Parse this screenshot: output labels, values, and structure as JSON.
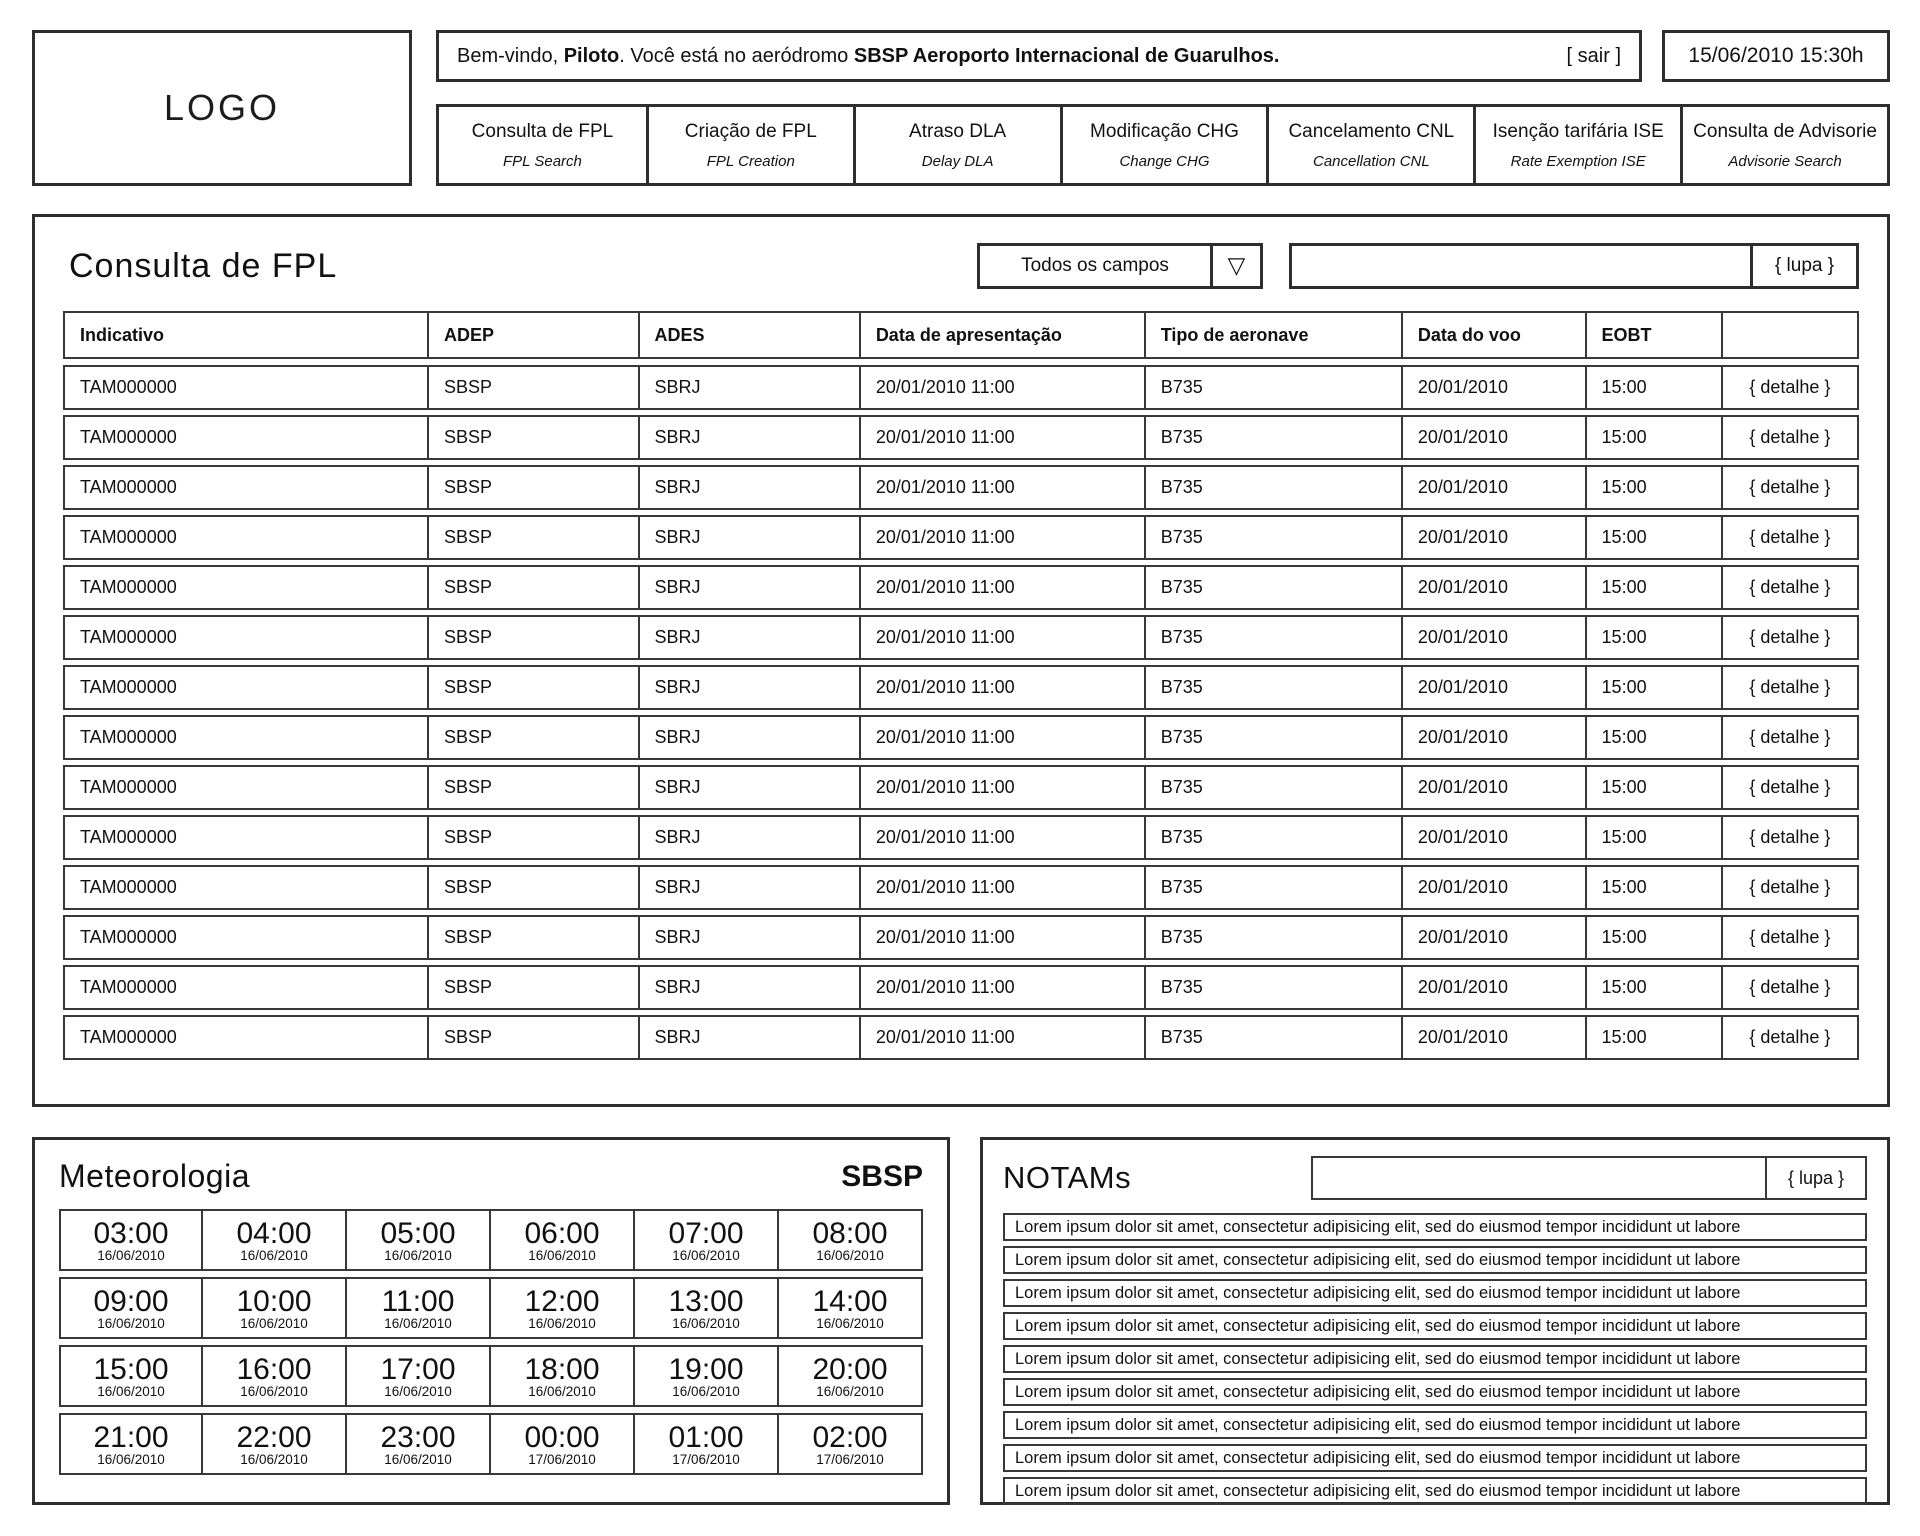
{
  "header": {
    "logo": "LOGO",
    "welcome": {
      "prefix": "Bem-vindo, ",
      "user": "Piloto",
      "middle": ". Você está no aeródromo ",
      "aerodrome": "SBSP Aeroporto Internacional de Guarulhos."
    },
    "logout_label": "[ sair ]",
    "datetime": "15/06/2010 15:30h",
    "nav": [
      {
        "label": "Consulta de FPL",
        "sublabel": "FPL Search"
      },
      {
        "label": "Criação de FPL",
        "sublabel": "FPL Creation"
      },
      {
        "label": "Atraso DLA",
        "sublabel": "Delay DLA"
      },
      {
        "label": "Modificação CHG",
        "sublabel": "Change CHG"
      },
      {
        "label": "Cancelamento CNL",
        "sublabel": "Cancellation CNL"
      },
      {
        "label": "Isenção tarifária ISE",
        "sublabel": "Rate Exemption ISE"
      },
      {
        "label": "Consulta de Advisorie",
        "sublabel": "Advisorie Search"
      }
    ]
  },
  "fpl_search": {
    "title": "Consulta de FPL",
    "filter_dropdown": {
      "value": "Todos os campos",
      "arrow_icon": "▽"
    },
    "search_input": {
      "value": "",
      "placeholder": ""
    },
    "search_button": "{ lupa }",
    "table": {
      "columns": [
        "Indicativo",
        "ADEP",
        "ADES",
        "Data de apresentação",
        "Tipo de aeronave",
        "Data do voo",
        "EOBT",
        ""
      ],
      "detail_label": "{ detalhe }",
      "rows": [
        {
          "indicativo": "TAM000000",
          "adep": "SBSP",
          "ades": "SBRJ",
          "data_apresentacao": "20/01/2010 11:00",
          "tipo_aeronave": "B735",
          "data_voo": "20/01/2010",
          "eobt": "15:00"
        },
        {
          "indicativo": "TAM000000",
          "adep": "SBSP",
          "ades": "SBRJ",
          "data_apresentacao": "20/01/2010 11:00",
          "tipo_aeronave": "B735",
          "data_voo": "20/01/2010",
          "eobt": "15:00"
        },
        {
          "indicativo": "TAM000000",
          "adep": "SBSP",
          "ades": "SBRJ",
          "data_apresentacao": "20/01/2010 11:00",
          "tipo_aeronave": "B735",
          "data_voo": "20/01/2010",
          "eobt": "15:00"
        },
        {
          "indicativo": "TAM000000",
          "adep": "SBSP",
          "ades": "SBRJ",
          "data_apresentacao": "20/01/2010 11:00",
          "tipo_aeronave": "B735",
          "data_voo": "20/01/2010",
          "eobt": "15:00"
        },
        {
          "indicativo": "TAM000000",
          "adep": "SBSP",
          "ades": "SBRJ",
          "data_apresentacao": "20/01/2010 11:00",
          "tipo_aeronave": "B735",
          "data_voo": "20/01/2010",
          "eobt": "15:00"
        },
        {
          "indicativo": "TAM000000",
          "adep": "SBSP",
          "ades": "SBRJ",
          "data_apresentacao": "20/01/2010 11:00",
          "tipo_aeronave": "B735",
          "data_voo": "20/01/2010",
          "eobt": "15:00"
        },
        {
          "indicativo": "TAM000000",
          "adep": "SBSP",
          "ades": "SBRJ",
          "data_apresentacao": "20/01/2010 11:00",
          "tipo_aeronave": "B735",
          "data_voo": "20/01/2010",
          "eobt": "15:00"
        },
        {
          "indicativo": "TAM000000",
          "adep": "SBSP",
          "ades": "SBRJ",
          "data_apresentacao": "20/01/2010 11:00",
          "tipo_aeronave": "B735",
          "data_voo": "20/01/2010",
          "eobt": "15:00"
        },
        {
          "indicativo": "TAM000000",
          "adep": "SBSP",
          "ades": "SBRJ",
          "data_apresentacao": "20/01/2010 11:00",
          "tipo_aeronave": "B735",
          "data_voo": "20/01/2010",
          "eobt": "15:00"
        },
        {
          "indicativo": "TAM000000",
          "adep": "SBSP",
          "ades": "SBRJ",
          "data_apresentacao": "20/01/2010 11:00",
          "tipo_aeronave": "B735",
          "data_voo": "20/01/2010",
          "eobt": "15:00"
        },
        {
          "indicativo": "TAM000000",
          "adep": "SBSP",
          "ades": "SBRJ",
          "data_apresentacao": "20/01/2010 11:00",
          "tipo_aeronave": "B735",
          "data_voo": "20/01/2010",
          "eobt": "15:00"
        },
        {
          "indicativo": "TAM000000",
          "adep": "SBSP",
          "ades": "SBRJ",
          "data_apresentacao": "20/01/2010 11:00",
          "tipo_aeronave": "B735",
          "data_voo": "20/01/2010",
          "eobt": "15:00"
        },
        {
          "indicativo": "TAM000000",
          "adep": "SBSP",
          "ades": "SBRJ",
          "data_apresentacao": "20/01/2010 11:00",
          "tipo_aeronave": "B735",
          "data_voo": "20/01/2010",
          "eobt": "15:00"
        },
        {
          "indicativo": "TAM000000",
          "adep": "SBSP",
          "ades": "SBRJ",
          "data_apresentacao": "20/01/2010 11:00",
          "tipo_aeronave": "B735",
          "data_voo": "20/01/2010",
          "eobt": "15:00"
        }
      ]
    }
  },
  "meteorologia": {
    "title": "Meteorologia",
    "station": "SBSP",
    "cells": [
      {
        "time": "03:00",
        "date": "16/06/2010"
      },
      {
        "time": "04:00",
        "date": "16/06/2010"
      },
      {
        "time": "05:00",
        "date": "16/06/2010"
      },
      {
        "time": "06:00",
        "date": "16/06/2010"
      },
      {
        "time": "07:00",
        "date": "16/06/2010"
      },
      {
        "time": "08:00",
        "date": "16/06/2010"
      },
      {
        "time": "09:00",
        "date": "16/06/2010"
      },
      {
        "time": "10:00",
        "date": "16/06/2010"
      },
      {
        "time": "11:00",
        "date": "16/06/2010"
      },
      {
        "time": "12:00",
        "date": "16/06/2010"
      },
      {
        "time": "13:00",
        "date": "16/06/2010"
      },
      {
        "time": "14:00",
        "date": "16/06/2010"
      },
      {
        "time": "15:00",
        "date": "16/06/2010"
      },
      {
        "time": "16:00",
        "date": "16/06/2010"
      },
      {
        "time": "17:00",
        "date": "16/06/2010"
      },
      {
        "time": "18:00",
        "date": "16/06/2010"
      },
      {
        "time": "19:00",
        "date": "16/06/2010"
      },
      {
        "time": "20:00",
        "date": "16/06/2010"
      },
      {
        "time": "21:00",
        "date": "16/06/2010"
      },
      {
        "time": "22:00",
        "date": "16/06/2010"
      },
      {
        "time": "23:00",
        "date": "16/06/2010"
      },
      {
        "time": "00:00",
        "date": "17/06/2010"
      },
      {
        "time": "01:00",
        "date": "17/06/2010"
      },
      {
        "time": "02:00",
        "date": "17/06/2010"
      }
    ]
  },
  "notams": {
    "title": "NOTAMs",
    "search_input": {
      "value": "",
      "placeholder": ""
    },
    "search_button": "{ lupa }",
    "items": [
      "Lorem ipsum dolor sit amet, consectetur adipisicing elit, sed do eiusmod tempor incididunt ut labore",
      "Lorem ipsum dolor sit amet, consectetur adipisicing elit, sed do eiusmod tempor incididunt ut labore",
      "Lorem ipsum dolor sit amet, consectetur adipisicing elit, sed do eiusmod tempor incididunt ut labore",
      "Lorem ipsum dolor sit amet, consectetur adipisicing elit, sed do eiusmod tempor incididunt ut labore",
      "Lorem ipsum dolor sit amet, consectetur adipisicing elit, sed do eiusmod tempor incididunt ut labore",
      "Lorem ipsum dolor sit amet, consectetur adipisicing elit, sed do eiusmod tempor incididunt ut labore",
      "Lorem ipsum dolor sit amet, consectetur adipisicing elit, sed do eiusmod tempor incididunt ut labore",
      "Lorem ipsum dolor sit amet, consectetur adipisicing elit, sed do eiusmod tempor incididunt ut labore",
      "Lorem ipsum dolor sit amet, consectetur adipisicing elit, sed do eiusmod tempor incididunt ut labore"
    ]
  }
}
